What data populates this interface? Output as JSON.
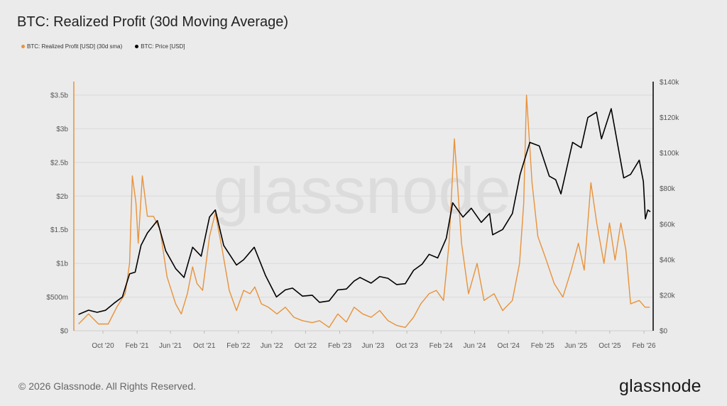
{
  "title": "BTC: Realized Profit (30d Moving Average)",
  "footer": "© 2026 Glassnode. All Rights Reserved.",
  "logo_text": "glassnode",
  "watermark": "glassnode",
  "chart_data": {
    "type": "line",
    "title": "BTC: Realized Profit (30d Moving Average)",
    "legend_placement": "top-left",
    "grid": true,
    "x_ticks": [
      "Oct '20",
      "Feb '21",
      "Jun '21",
      "Oct '21",
      "Feb '22",
      "Jun '22",
      "Oct '22",
      "Feb '23",
      "Jun '23",
      "Oct '23",
      "Feb '24",
      "Jun '24",
      "Oct '24",
      "Feb '25",
      "Jun '25",
      "Oct '25",
      "Feb '26"
    ],
    "y_left": {
      "ticks": [
        "$0",
        "$500m",
        "$1b",
        "$1.5b",
        "$2b",
        "$2.5b",
        "$3b",
        "$3.5b"
      ],
      "range": [
        0,
        3.5
      ],
      "unit": "USD billions",
      "color": "#e8923a"
    },
    "y_right": {
      "ticks": [
        "$0",
        "$20k",
        "$40k",
        "$60k",
        "$80k",
        "$100k",
        "$120k",
        "$140k"
      ],
      "range": [
        0,
        140
      ],
      "unit": "USD thousands",
      "color": "#000000"
    },
    "series": [
      {
        "name": "BTC: Realized Profit [USD] (30d sma)",
        "axis": "left",
        "color": "#e8923a",
        "points": [
          [
            "2020-07-05",
            0.1
          ],
          [
            "2020-08-10",
            0.25
          ],
          [
            "2020-09-15",
            0.1
          ],
          [
            "2020-10-20",
            0.1
          ],
          [
            "2020-11-20",
            0.35
          ],
          [
            "2020-12-20",
            0.55
          ],
          [
            "2021-01-05",
            1.0
          ],
          [
            "2021-01-15",
            2.3
          ],
          [
            "2021-01-28",
            1.9
          ],
          [
            "2021-02-05",
            1.3
          ],
          [
            "2021-02-20",
            2.3
          ],
          [
            "2021-03-10",
            1.7
          ],
          [
            "2021-04-01",
            1.7
          ],
          [
            "2021-04-25",
            1.5
          ],
          [
            "2021-05-20",
            0.8
          ],
          [
            "2021-06-20",
            0.4
          ],
          [
            "2021-07-10",
            0.25
          ],
          [
            "2021-08-01",
            0.55
          ],
          [
            "2021-08-20",
            0.95
          ],
          [
            "2021-09-05",
            0.7
          ],
          [
            "2021-09-25",
            0.6
          ],
          [
            "2021-10-20",
            1.4
          ],
          [
            "2021-11-10",
            1.75
          ],
          [
            "2021-12-05",
            1.2
          ],
          [
            "2021-12-30",
            0.6
          ],
          [
            "2022-01-25",
            0.3
          ],
          [
            "2022-02-20",
            0.6
          ],
          [
            "2022-03-15",
            0.55
          ],
          [
            "2022-04-01",
            0.65
          ],
          [
            "2022-04-25",
            0.4
          ],
          [
            "2022-05-20",
            0.35
          ],
          [
            "2022-06-20",
            0.25
          ],
          [
            "2022-07-20",
            0.35
          ],
          [
            "2022-08-20",
            0.2
          ],
          [
            "2022-09-20",
            0.15
          ],
          [
            "2022-10-25",
            0.12
          ],
          [
            "2022-11-20",
            0.15
          ],
          [
            "2022-12-25",
            0.05
          ],
          [
            "2023-01-25",
            0.25
          ],
          [
            "2023-02-25",
            0.13
          ],
          [
            "2023-03-25",
            0.35
          ],
          [
            "2023-04-25",
            0.25
          ],
          [
            "2023-05-25",
            0.2
          ],
          [
            "2023-06-25",
            0.3
          ],
          [
            "2023-07-25",
            0.15
          ],
          [
            "2023-08-25",
            0.08
          ],
          [
            "2023-09-25",
            0.05
          ],
          [
            "2023-10-25",
            0.2
          ],
          [
            "2023-11-20",
            0.4
          ],
          [
            "2023-12-20",
            0.55
          ],
          [
            "2024-01-15",
            0.6
          ],
          [
            "2024-02-10",
            0.45
          ],
          [
            "2024-03-01",
            1.3
          ],
          [
            "2024-03-20",
            2.85
          ],
          [
            "2024-04-15",
            1.3
          ],
          [
            "2024-05-10",
            0.55
          ],
          [
            "2024-06-10",
            1.0
          ],
          [
            "2024-07-05",
            0.45
          ],
          [
            "2024-08-10",
            0.55
          ],
          [
            "2024-09-10",
            0.3
          ],
          [
            "2024-10-15",
            0.45
          ],
          [
            "2024-11-10",
            1.0
          ],
          [
            "2024-11-25",
            1.9
          ],
          [
            "2024-12-05",
            3.5
          ],
          [
            "2024-12-25",
            2.2
          ],
          [
            "2025-01-15",
            1.4
          ],
          [
            "2025-02-10",
            1.1
          ],
          [
            "2025-03-15",
            0.7
          ],
          [
            "2025-04-15",
            0.5
          ],
          [
            "2025-05-15",
            0.9
          ],
          [
            "2025-06-10",
            1.3
          ],
          [
            "2025-07-01",
            0.9
          ],
          [
            "2025-07-25",
            2.2
          ],
          [
            "2025-08-15",
            1.6
          ],
          [
            "2025-09-10",
            1.0
          ],
          [
            "2025-09-30",
            1.6
          ],
          [
            "2025-10-20",
            1.05
          ],
          [
            "2025-11-10",
            1.6
          ],
          [
            "2025-11-28",
            1.2
          ],
          [
            "2025-12-15",
            0.4
          ],
          [
            "2026-01-15",
            0.45
          ],
          [
            "2026-02-05",
            0.35
          ],
          [
            "2026-02-22",
            0.35
          ]
        ]
      },
      {
        "name": "BTC: Price [USD]",
        "axis": "right",
        "color": "#000000",
        "points": [
          [
            "2020-07-05",
            9.2
          ],
          [
            "2020-08-10",
            11.6
          ],
          [
            "2020-09-10",
            10.4
          ],
          [
            "2020-10-10",
            11.5
          ],
          [
            "2020-11-10",
            15.5
          ],
          [
            "2020-12-10",
            19
          ],
          [
            "2021-01-05",
            32
          ],
          [
            "2021-01-25",
            33
          ],
          [
            "2021-02-15",
            48
          ],
          [
            "2021-03-10",
            55
          ],
          [
            "2021-04-15",
            62
          ],
          [
            "2021-05-15",
            45
          ],
          [
            "2021-06-20",
            35
          ],
          [
            "2021-07-20",
            30
          ],
          [
            "2021-08-20",
            47
          ],
          [
            "2021-09-20",
            42
          ],
          [
            "2021-10-20",
            64
          ],
          [
            "2021-11-10",
            68
          ],
          [
            "2021-12-10",
            48
          ],
          [
            "2022-01-25",
            37
          ],
          [
            "2022-02-20",
            40
          ],
          [
            "2022-03-30",
            47
          ],
          [
            "2022-05-10",
            31
          ],
          [
            "2022-06-18",
            19
          ],
          [
            "2022-07-20",
            23
          ],
          [
            "2022-08-15",
            24
          ],
          [
            "2022-09-20",
            19.5
          ],
          [
            "2022-10-25",
            20
          ],
          [
            "2022-11-20",
            16
          ],
          [
            "2022-12-25",
            16.8
          ],
          [
            "2023-01-25",
            23
          ],
          [
            "2023-02-25",
            23.5
          ],
          [
            "2023-03-25",
            28
          ],
          [
            "2023-04-15",
            30
          ],
          [
            "2023-05-25",
            26.8
          ],
          [
            "2023-06-25",
            30.5
          ],
          [
            "2023-07-25",
            29.5
          ],
          [
            "2023-08-25",
            26
          ],
          [
            "2023-09-25",
            26.5
          ],
          [
            "2023-10-25",
            34
          ],
          [
            "2023-11-25",
            37.5
          ],
          [
            "2023-12-20",
            43
          ],
          [
            "2024-01-20",
            41
          ],
          [
            "2024-02-20",
            52
          ],
          [
            "2024-03-14",
            72
          ],
          [
            "2024-04-20",
            64
          ],
          [
            "2024-05-20",
            69
          ],
          [
            "2024-06-25",
            61
          ],
          [
            "2024-07-25",
            66
          ],
          [
            "2024-08-05",
            54
          ],
          [
            "2024-09-10",
            57
          ],
          [
            "2024-10-15",
            66
          ],
          [
            "2024-11-12",
            88
          ],
          [
            "2024-12-17",
            106
          ],
          [
            "2025-01-20",
            104
          ],
          [
            "2025-02-25",
            87
          ],
          [
            "2025-03-20",
            85
          ],
          [
            "2025-04-08",
            77
          ],
          [
            "2025-05-20",
            106
          ],
          [
            "2025-06-20",
            103
          ],
          [
            "2025-07-14",
            120
          ],
          [
            "2025-08-14",
            123
          ],
          [
            "2025-09-01",
            108
          ],
          [
            "2025-10-06",
            125
          ],
          [
            "2025-11-20",
            86
          ],
          [
            "2025-12-15",
            88
          ],
          [
            "2026-01-15",
            96
          ],
          [
            "2026-01-30",
            84
          ],
          [
            "2026-02-06",
            63
          ],
          [
            "2026-02-15",
            68
          ],
          [
            "2026-02-24",
            67
          ]
        ]
      }
    ]
  },
  "legend": [
    {
      "label": "BTC: Realized Profit [USD] (30d sma)",
      "color": "#e8923a"
    },
    {
      "label": "BTC: Price [USD]",
      "color": "#000000"
    }
  ]
}
